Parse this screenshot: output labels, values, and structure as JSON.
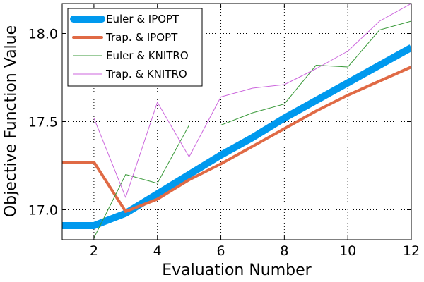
{
  "chart_data": {
    "type": "line",
    "xlabel": "Evaluation Number",
    "ylabel": "Objective Function Value",
    "xlim": [
      1,
      12
    ],
    "ylim": [
      16.83,
      18.17
    ],
    "xticks": [
      2,
      4,
      6,
      8,
      10,
      12
    ],
    "xtick_labels": [
      "2",
      "4",
      "6",
      "8",
      "10",
      "12"
    ],
    "yticks": [
      17.0,
      17.5,
      18.0
    ],
    "ytick_labels": [
      "17.0",
      "17.5",
      "18.0"
    ],
    "grid": true,
    "legend_position": "top-left",
    "x": [
      1,
      2,
      3,
      4,
      5,
      6,
      7,
      8,
      9,
      10,
      11,
      12
    ],
    "series": [
      {
        "name": "Euler & IPOPT",
        "color": "#0099ee",
        "style": "thick",
        "values": [
          16.91,
          16.91,
          16.98,
          17.09,
          17.2,
          17.31,
          17.41,
          17.52,
          17.62,
          17.72,
          17.82,
          17.92
        ]
      },
      {
        "name": "Trap. & IPOPT",
        "color": "#e06a45",
        "style": "medium",
        "values": [
          17.27,
          17.27,
          16.99,
          17.06,
          17.17,
          17.26,
          17.36,
          17.46,
          17.56,
          17.65,
          17.73,
          17.81
        ]
      },
      {
        "name": "Euler & KNITRO",
        "color": "#3a9a3a",
        "style": "thin",
        "values": [
          16.84,
          16.84,
          17.2,
          17.15,
          17.48,
          17.48,
          17.55,
          17.6,
          17.82,
          17.81,
          18.02,
          18.07
        ]
      },
      {
        "name": "Trap. & KNITRO",
        "color": "#cc66dd",
        "style": "thin",
        "values": [
          17.52,
          17.52,
          17.07,
          17.61,
          17.3,
          17.64,
          17.69,
          17.71,
          17.8,
          17.9,
          18.07,
          18.17
        ]
      }
    ]
  }
}
